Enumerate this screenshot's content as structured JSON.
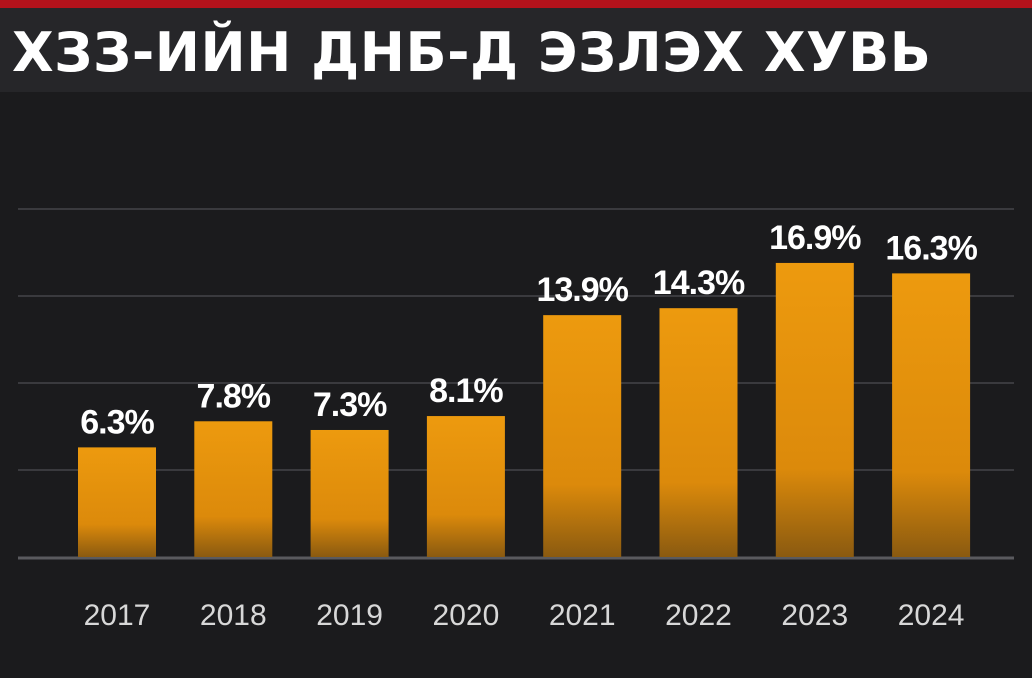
{
  "header": {
    "title": "ХЗЗ-ИЙН ДНБ-Д ЭЗЛЭХ ХУВЬ"
  },
  "colors": {
    "bar": "#e8950d",
    "accent": "#b3121b",
    "background": "#1b1b1d"
  },
  "chart_data": {
    "type": "bar",
    "title": "ХЗЗ-ИЙН ДНБ-Д ЭЗЛЭХ ХУВЬ",
    "categories": [
      "2017",
      "2018",
      "2019",
      "2020",
      "2021",
      "2022",
      "2023",
      "2024"
    ],
    "values": [
      6.3,
      7.8,
      7.3,
      8.1,
      13.9,
      14.3,
      16.9,
      16.3
    ],
    "data_labels": [
      "6.3%",
      "7.8%",
      "7.3%",
      "8.1%",
      "13.9%",
      "14.3%",
      "16.9%",
      "16.3%"
    ],
    "xlabel": "",
    "ylabel": "",
    "ylim": [
      0,
      20
    ],
    "grid": true,
    "legend": "none"
  }
}
